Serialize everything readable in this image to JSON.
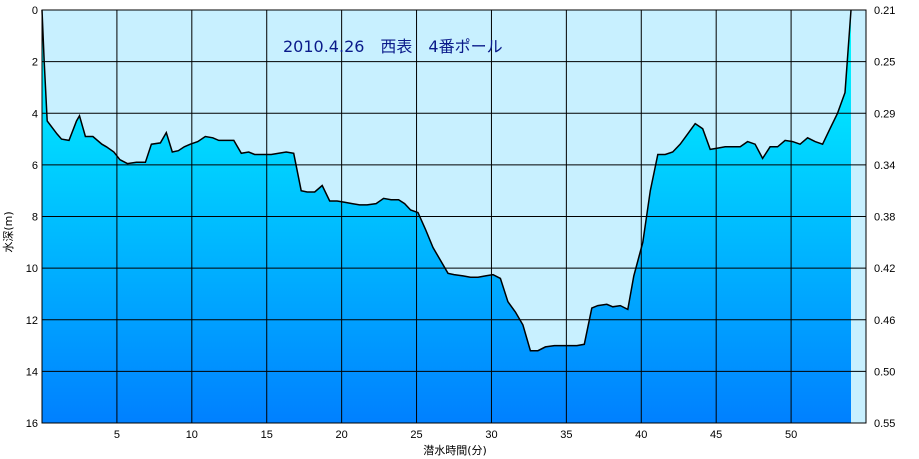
{
  "chart_data": {
    "type": "area",
    "title": "2010.4.26　西表　4番ポール",
    "xlabel": "潜水時間(分)",
    "ylabel": "水深(m)",
    "xlim": [
      0,
      55
    ],
    "ylim": [
      0,
      16
    ],
    "y_inverted": true,
    "x_ticks": [
      5,
      10,
      15,
      20,
      25,
      30,
      35,
      40,
      45,
      50
    ],
    "y_ticks": [
      0,
      2,
      4,
      6,
      8,
      10,
      12,
      14,
      16
    ],
    "right_axis_ticks": [
      "0.21",
      "0.25",
      "0.29",
      "0.34",
      "0.38",
      "0.42",
      "0.46",
      "0.50",
      "0.55"
    ],
    "grid": true,
    "colors": {
      "background_air": "#c8f0ff",
      "fill_top": "#00ffff",
      "fill_bottom": "#0080ff",
      "line": "#000000",
      "grid": "#000000",
      "border": "#000000",
      "title": "#0a1a8a"
    },
    "series": [
      {
        "x": [
          0,
          0.15,
          0.35,
          1,
          1.3,
          1.8,
          2.3,
          2.5,
          2.9,
          3.4,
          4,
          4.3,
          4.8,
          5.2,
          5.7,
          6.3,
          6.9,
          7.3,
          7.9,
          8.3,
          8.7,
          9.1,
          9.5,
          9.9,
          10.4,
          10.9,
          11.4,
          11.8,
          12.3,
          12.8,
          13.3,
          13.8,
          14.2,
          14.8,
          15.3,
          15.8,
          16.3,
          16.8,
          17.3,
          17.7,
          18.2,
          18.7,
          19.2,
          19.7,
          20.2,
          20.7,
          21.2,
          21.7,
          22.3,
          22.8,
          23.3,
          23.8,
          24.2,
          24.6,
          25.1,
          25.6,
          26.1,
          26.6,
          27.1,
          27.5,
          28.1,
          28.6,
          29.1,
          29.6,
          30.1,
          30.6,
          31.1,
          31.6,
          32.1,
          32.6,
          33.1,
          33.6,
          34.2,
          34.7,
          35.2,
          35.7,
          36.2,
          36.7,
          37.1,
          37.7,
          38.1,
          38.6,
          39.1,
          39.5,
          40.1,
          40.6,
          41.1,
          41.6,
          42.1,
          42.6,
          43.1,
          43.6,
          44.1,
          44.6,
          45.1,
          45.6,
          46.1,
          46.6,
          47.1,
          47.6,
          48.1,
          48.6,
          49.1,
          49.6,
          50.1,
          50.6,
          51.1,
          51.6,
          52.1,
          52.6,
          53.1,
          53.6,
          54.0
        ],
        "values": [
          0,
          2,
          4.3,
          4.8,
          5,
          5.05,
          4.3,
          4.1,
          4.9,
          4.9,
          5.2,
          5.3,
          5.5,
          5.8,
          5.95,
          5.9,
          5.9,
          5.2,
          5.15,
          4.75,
          5.5,
          5.45,
          5.3,
          5.2,
          5.1,
          4.9,
          4.95,
          5.05,
          5.05,
          5.05,
          5.55,
          5.5,
          5.6,
          5.6,
          5.6,
          5.55,
          5.5,
          5.55,
          7.0,
          7.05,
          7.05,
          6.8,
          7.4,
          7.4,
          7.45,
          7.5,
          7.55,
          7.55,
          7.5,
          7.3,
          7.35,
          7.35,
          7.5,
          7.75,
          7.85,
          8.5,
          9.2,
          9.7,
          10.2,
          10.25,
          10.3,
          10.35,
          10.35,
          10.3,
          10.25,
          10.4,
          11.3,
          11.7,
          12.2,
          13.2,
          13.2,
          13.05,
          13.0,
          13.0,
          13.0,
          13.0,
          12.95,
          11.55,
          11.45,
          11.4,
          11.5,
          11.45,
          11.6,
          10.3,
          9.0,
          7.0,
          5.6,
          5.6,
          5.5,
          5.2,
          4.8,
          4.4,
          4.6,
          5.4,
          5.35,
          5.3,
          5.3,
          5.3,
          5.1,
          5.2,
          5.75,
          5.3,
          5.3,
          5.05,
          5.1,
          5.2,
          4.95,
          5.1,
          5.2,
          4.6,
          4.0,
          3.2,
          0
        ]
      }
    ]
  }
}
